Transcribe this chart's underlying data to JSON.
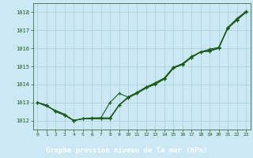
{
  "title": "Graphe pression niveau de la mer (hPa)",
  "background_color": "#cce8f4",
  "grid_color": "#b0d0e0",
  "line_color": "#1a5c1a",
  "label_bg_color": "#2a6e2a",
  "label_text_color": "#ffffff",
  "xlim": [
    -0.5,
    23.5
  ],
  "ylim": [
    1011.5,
    1018.5
  ],
  "yticks": [
    1012,
    1013,
    1014,
    1015,
    1016,
    1017,
    1018
  ],
  "xtick_labels": [
    "0",
    "1",
    "2",
    "3",
    "4",
    "5",
    "6",
    "7",
    "8",
    "9",
    "10",
    "11",
    "12",
    "13",
    "14",
    "15",
    "16",
    "17",
    "18",
    "19",
    "20",
    "21",
    "22",
    "23"
  ],
  "series": [
    {
      "x": [
        0,
        1,
        2,
        3,
        4,
        5,
        6,
        7,
        8,
        9,
        10,
        11,
        12,
        13,
        14,
        15,
        16,
        17,
        18,
        19,
        20,
        21,
        22,
        23
      ],
      "y": [
        1013.0,
        1012.85,
        1012.5,
        1012.3,
        1012.0,
        1012.1,
        1012.1,
        1012.1,
        1012.1,
        1012.85,
        1013.3,
        1013.55,
        1013.85,
        1014.05,
        1014.3,
        1014.9,
        1015.1,
        1015.5,
        1015.8,
        1015.85,
        1016.0,
        1017.15,
        1017.6,
        1018.0
      ]
    },
    {
      "x": [
        0,
        1,
        2,
        3,
        4,
        5,
        6,
        7,
        8,
        9,
        10,
        11,
        12,
        13,
        14,
        15,
        16,
        17,
        18,
        19,
        20,
        21,
        22,
        23
      ],
      "y": [
        1013.0,
        1012.85,
        1012.5,
        1012.3,
        1012.0,
        1012.1,
        1012.15,
        1012.15,
        1012.15,
        1012.85,
        1013.25,
        1013.5,
        1013.8,
        1014.0,
        1014.3,
        1014.9,
        1015.15,
        1015.5,
        1015.8,
        1015.9,
        1016.05,
        1017.1,
        1017.55,
        1018.0
      ]
    },
    {
      "x": [
        0,
        1,
        2,
        3,
        4,
        5,
        6,
        7,
        8,
        9,
        10,
        11,
        12,
        13,
        14,
        15,
        16,
        17,
        18,
        19,
        20,
        21,
        22,
        23
      ],
      "y": [
        1013.0,
        1012.85,
        1012.5,
        1012.3,
        1012.0,
        1012.1,
        1012.1,
        1012.15,
        1013.0,
        1013.5,
        1013.3,
        1013.55,
        1013.85,
        1014.1,
        1014.35,
        1014.95,
        1015.15,
        1015.55,
        1015.8,
        1015.95,
        1016.05,
        1017.15,
        1017.65,
        1018.05
      ]
    },
    {
      "x": [
        0,
        3,
        4,
        5,
        6,
        7,
        8,
        9,
        10,
        11,
        12,
        13,
        14,
        15,
        16,
        17,
        18,
        19,
        20,
        21,
        22,
        23
      ],
      "y": [
        1013.0,
        1012.35,
        1012.0,
        1012.1,
        1012.1,
        1012.1,
        1012.1,
        1012.85,
        1013.3,
        1013.55,
        1013.85,
        1014.05,
        1014.35,
        1014.95,
        1015.1,
        1015.5,
        1015.8,
        1015.85,
        1016.0,
        1017.15,
        1017.6,
        1018.0
      ]
    }
  ]
}
